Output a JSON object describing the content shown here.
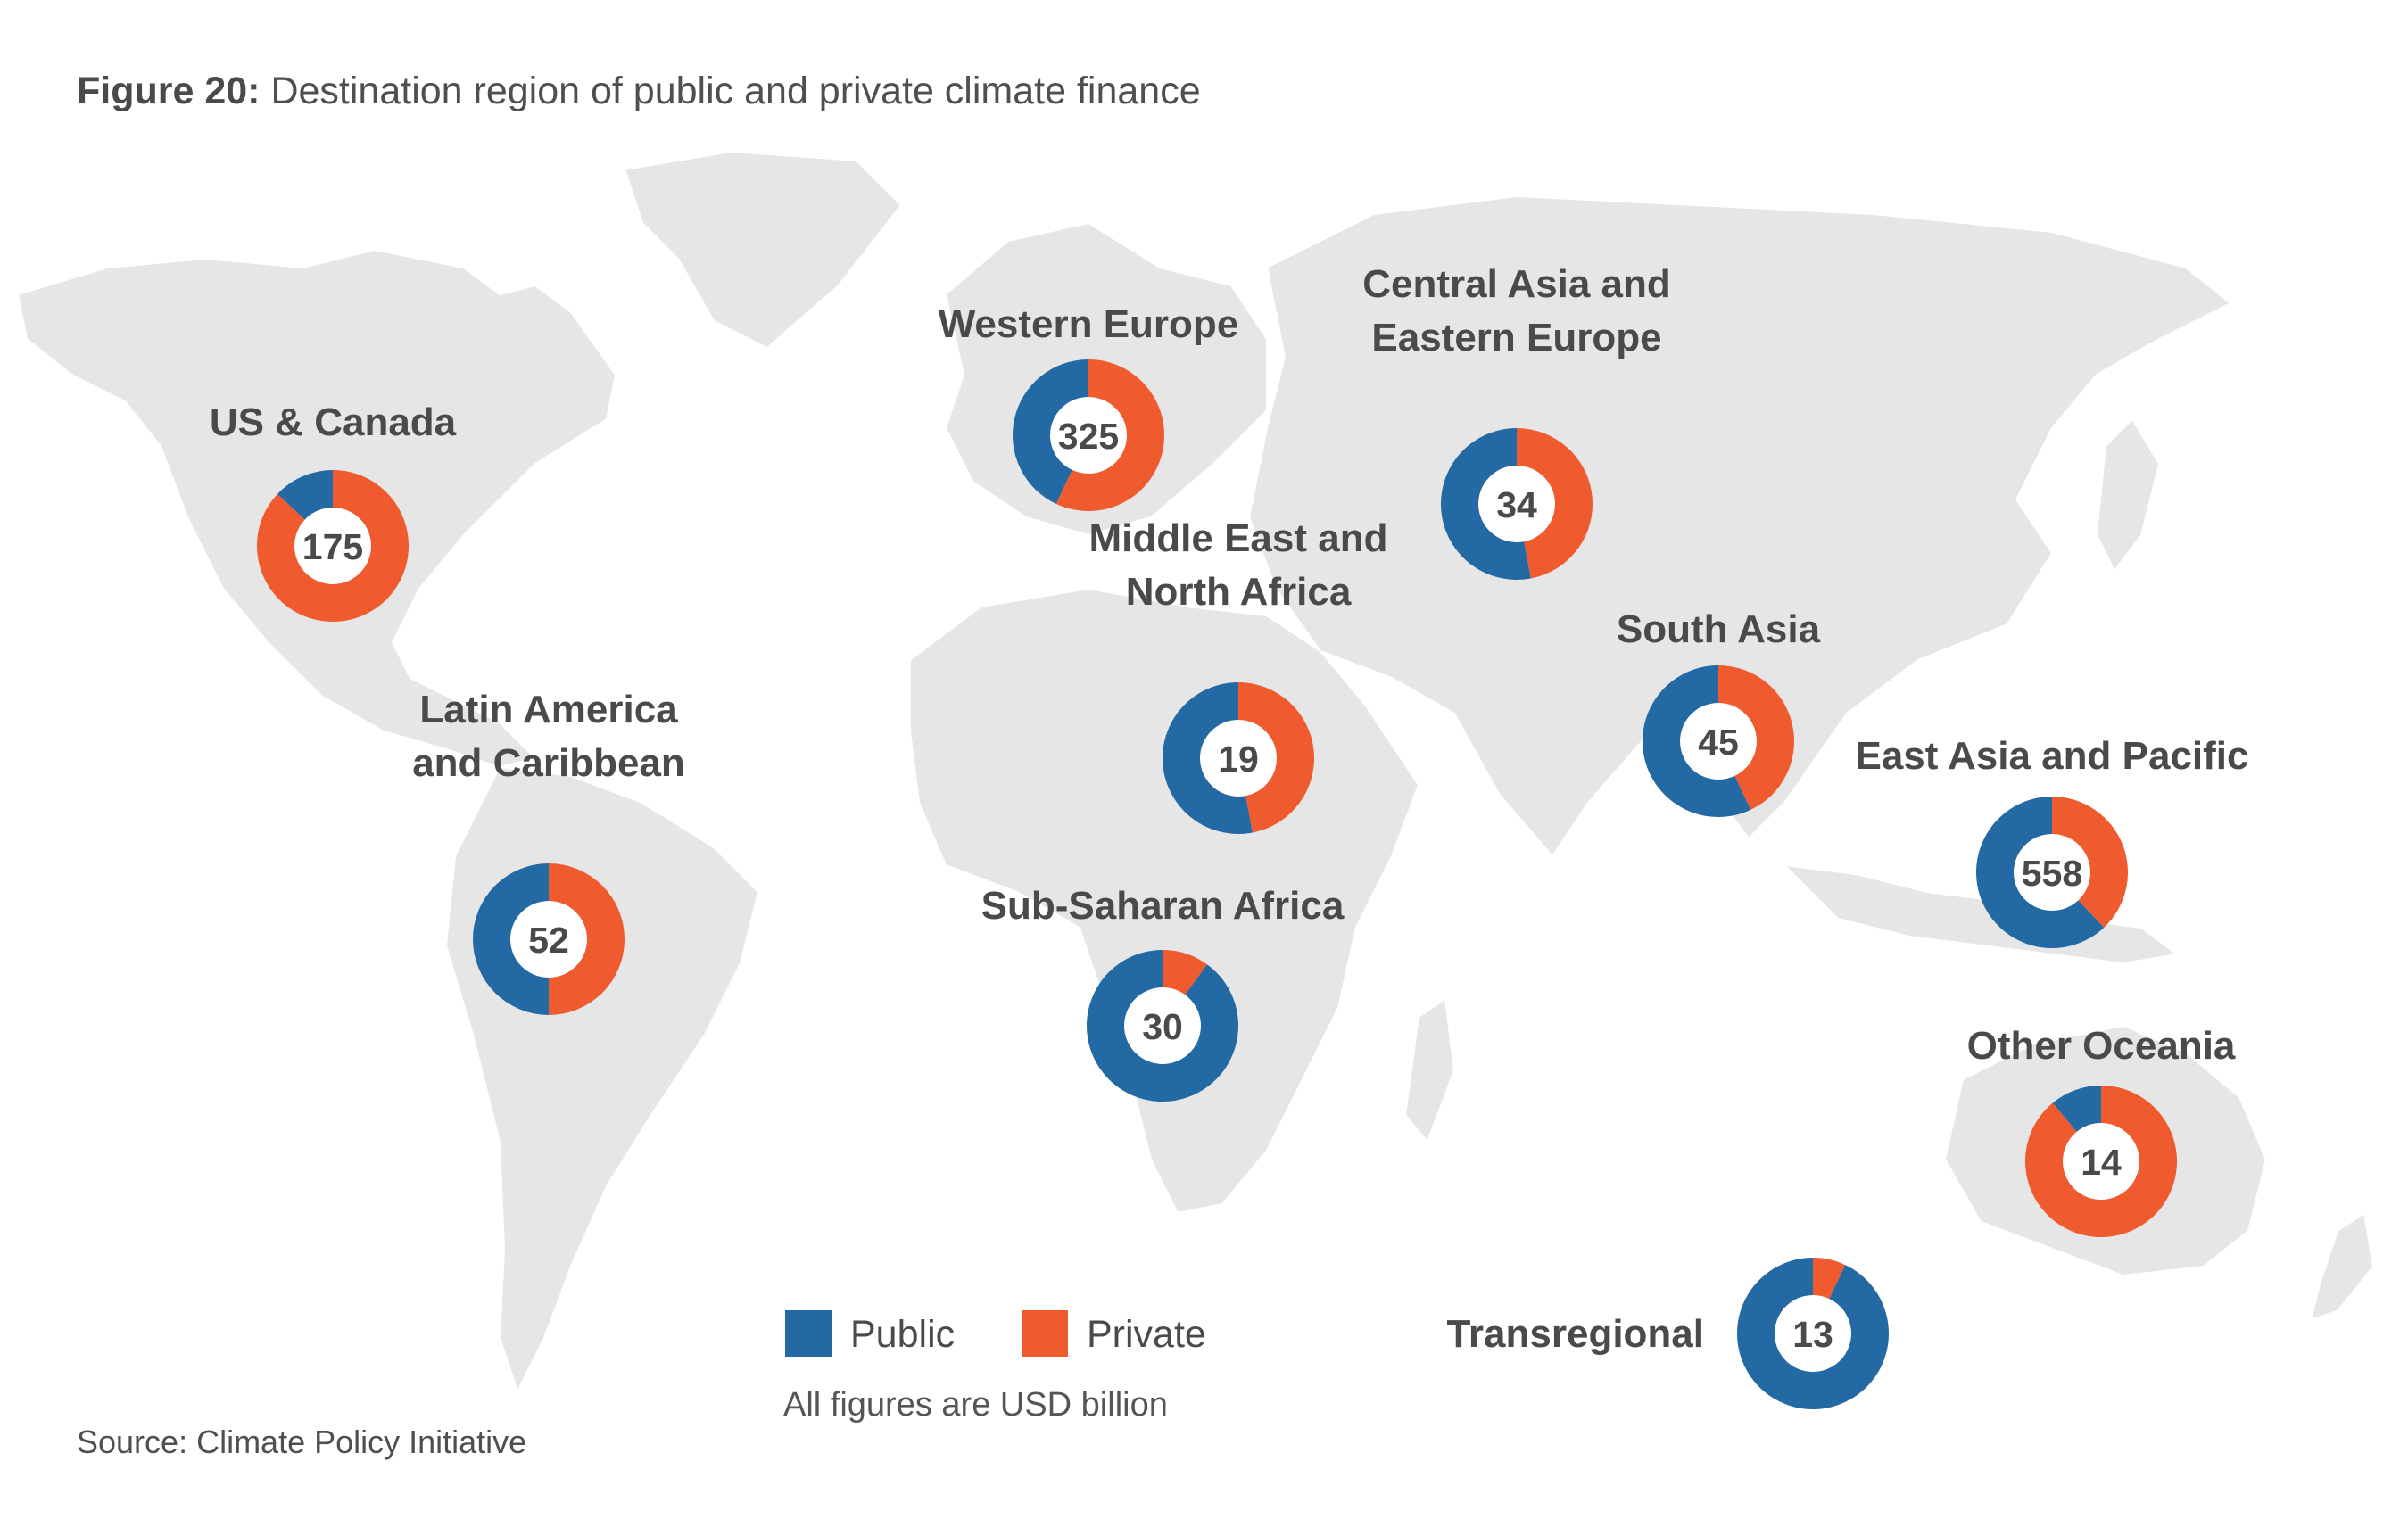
{
  "title_bold": "Figure 20:",
  "title_rest": "Destination region of public and private climate finance",
  "source": "Source: Climate Policy Initiative",
  "legend": {
    "public": "Public",
    "private": "Private",
    "note": "All figures are USD billion"
  },
  "colors": {
    "public": "#2369a3",
    "private": "#ef5a2f",
    "map": "#e6e6e6",
    "text": "#4a4a4a"
  },
  "chart_data": {
    "type": "pie",
    "unit": "USD billion",
    "series_names": [
      "Public",
      "Private"
    ],
    "regions": [
      {
        "name": [
          "US & Canada"
        ],
        "total": 175,
        "public_share": 0.13,
        "private_share": 0.87
      },
      {
        "name": [
          "Western Europe"
        ],
        "total": 325,
        "public_share": 0.43,
        "private_share": 0.57
      },
      {
        "name": [
          "Central Asia and",
          "Eastern Europe"
        ],
        "total": 34,
        "public_share": 0.53,
        "private_share": 0.47
      },
      {
        "name": [
          "Middle East and",
          "North Africa"
        ],
        "total": 19,
        "public_share": 0.53,
        "private_share": 0.47
      },
      {
        "name": [
          "South Asia"
        ],
        "total": 45,
        "public_share": 0.57,
        "private_share": 0.43
      },
      {
        "name": [
          "Latin America",
          "and Caribbean"
        ],
        "total": 52,
        "public_share": 0.5,
        "private_share": 0.5
      },
      {
        "name": [
          "Sub-Saharan Africa"
        ],
        "total": 30,
        "public_share": 0.9,
        "private_share": 0.1
      },
      {
        "name": [
          "East Asia and Pacific"
        ],
        "total": 558,
        "public_share": 0.62,
        "private_share": 0.38
      },
      {
        "name": [
          "Other Oceania"
        ],
        "total": 14,
        "public_share": 0.11,
        "private_share": 0.89
      },
      {
        "name": [
          "Transregional"
        ],
        "total": 13,
        "public_share": 0.93,
        "private_share": 0.07
      }
    ]
  }
}
